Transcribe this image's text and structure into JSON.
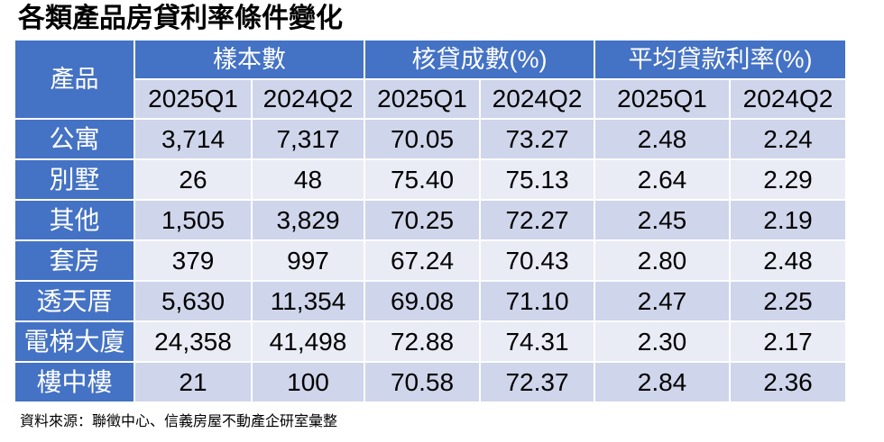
{
  "colors": {
    "header_bg": "#4472C4",
    "header_text": "#FFFFFF",
    "subheader_bg": "#CFD5EA",
    "band_a": "#CFD5EA",
    "band_b": "#E9EBF5",
    "body_text": "#000000"
  },
  "chart_data": {
    "type": "table",
    "title": "各類產品房貸利率條件變化",
    "row_header": "產品",
    "column_groups": [
      {
        "label": "樣本數",
        "columns": [
          "2025Q1",
          "2024Q2"
        ]
      },
      {
        "label": "核貸成數(%)",
        "columns": [
          "2025Q1",
          "2024Q2"
        ]
      },
      {
        "label": "平均貸款利率(%)",
        "columns": [
          "2025Q1",
          "2024Q2"
        ]
      }
    ],
    "rows": [
      {
        "label": "公寓",
        "values": [
          "3,714",
          "7,317",
          "70.05",
          "73.27",
          "2.48",
          "2.24"
        ]
      },
      {
        "label": "別墅",
        "values": [
          "26",
          "48",
          "75.40",
          "75.13",
          "2.64",
          "2.29"
        ]
      },
      {
        "label": "其他",
        "values": [
          "1,505",
          "3,829",
          "70.25",
          "72.27",
          "2.45",
          "2.19"
        ]
      },
      {
        "label": "套房",
        "values": [
          "379",
          "997",
          "67.24",
          "70.43",
          "2.80",
          "2.48"
        ]
      },
      {
        "label": "透天厝",
        "values": [
          "5,630",
          "11,354",
          "69.08",
          "71.10",
          "2.47",
          "2.25"
        ]
      },
      {
        "label": "電梯大廈",
        "values": [
          "24,358",
          "41,498",
          "72.88",
          "74.31",
          "2.30",
          "2.17"
        ]
      },
      {
        "label": "樓中樓",
        "values": [
          "21",
          "100",
          "70.58",
          "72.37",
          "2.84",
          "2.36"
        ]
      }
    ],
    "source": "資料來源：聯徵中心、信義房屋不動產企研室彙整"
  }
}
